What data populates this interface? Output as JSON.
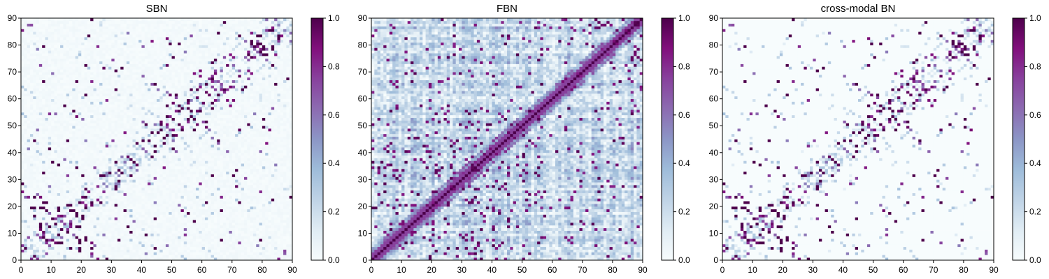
{
  "chart_data": [
    {
      "type": "heatmap",
      "title": "SBN",
      "xlim": [
        0,
        90
      ],
      "ylim": [
        0,
        90
      ],
      "xticks": [
        0,
        10,
        20,
        30,
        40,
        50,
        60,
        70,
        80,
        90
      ],
      "yticks": [
        0,
        10,
        20,
        30,
        40,
        50,
        60,
        70,
        80,
        90
      ],
      "colorbar": {
        "range": [
          0,
          1
        ],
        "ticks": [
          "0.0",
          "0.2",
          "0.4",
          "0.6",
          "0.8",
          "1.0"
        ]
      },
      "colormap": "BuPu",
      "matrix_size": 90,
      "seed": 11,
      "pattern": "sparse",
      "background_value": 0.02
    },
    {
      "type": "heatmap",
      "title": "FBN",
      "xlim": [
        0,
        90
      ],
      "ylim": [
        0,
        90
      ],
      "xticks": [
        0,
        10,
        20,
        30,
        40,
        50,
        60,
        70,
        80,
        90
      ],
      "yticks": [
        0,
        10,
        20,
        30,
        40,
        50,
        60,
        70,
        80,
        90
      ],
      "colorbar": {
        "range": [
          0,
          1
        ],
        "ticks": [
          "0.0",
          "0.2",
          "0.4",
          "0.6",
          "0.8",
          "1.0"
        ]
      },
      "colormap": "BuPu",
      "matrix_size": 90,
      "seed": 23,
      "pattern": "dense",
      "background_value": 0.2
    },
    {
      "type": "heatmap",
      "title": "cross-modal BN",
      "xlim": [
        0,
        90
      ],
      "ylim": [
        0,
        90
      ],
      "xticks": [
        0,
        10,
        20,
        30,
        40,
        50,
        60,
        70,
        80,
        90
      ],
      "yticks": [
        0,
        10,
        20,
        30,
        40,
        50,
        60,
        70,
        80,
        90
      ],
      "colorbar": {
        "range": [
          0,
          1
        ],
        "ticks": [
          "0.0",
          "0.2",
          "0.4",
          "0.6",
          "0.8",
          "1.0"
        ]
      },
      "colormap": "BuPu",
      "matrix_size": 90,
      "seed": 11,
      "pattern": "sparse",
      "background_value": 0.0
    }
  ],
  "colors": {
    "colormap_stops": [
      "#f7fcfd",
      "#e0ecf4",
      "#bfd3e6",
      "#9ebcda",
      "#8c96c6",
      "#8c6bb1",
      "#88419d",
      "#810f7c",
      "#4d004b"
    ]
  }
}
